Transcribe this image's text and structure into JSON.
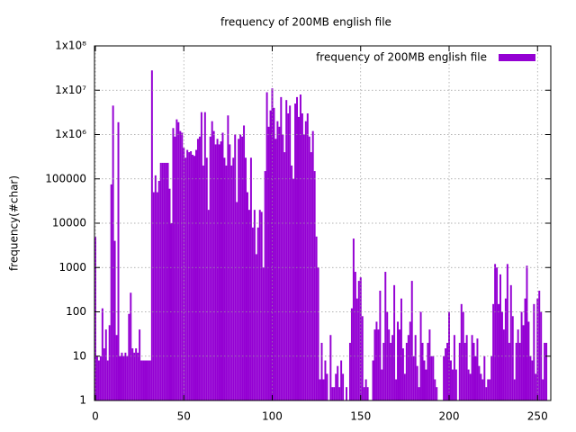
{
  "chart_data": {
    "type": "bar",
    "title": "frequency of 200MB english file",
    "y_label": "frequency(#char)",
    "x": [
      0,
      1,
      2,
      3,
      4,
      5,
      6,
      7,
      8,
      9,
      10,
      11,
      12,
      13,
      14,
      15,
      16,
      17,
      18,
      19,
      20,
      21,
      22,
      23,
      24,
      25,
      26,
      27,
      28,
      29,
      30,
      31,
      32,
      33,
      34,
      35,
      36,
      37,
      38,
      39,
      40,
      41,
      42,
      43,
      44,
      45,
      46,
      47,
      48,
      49,
      50,
      51,
      52,
      53,
      54,
      55,
      56,
      57,
      58,
      59,
      60,
      61,
      62,
      63,
      64,
      65,
      66,
      67,
      68,
      69,
      70,
      71,
      72,
      73,
      74,
      75,
      76,
      77,
      78,
      79,
      80,
      81,
      82,
      83,
      84,
      85,
      86,
      87,
      88,
      89,
      90,
      91,
      92,
      93,
      94,
      95,
      96,
      97,
      98,
      99,
      100,
      101,
      102,
      103,
      104,
      105,
      106,
      107,
      108,
      109,
      110,
      111,
      112,
      113,
      114,
      115,
      116,
      117,
      118,
      119,
      120,
      121,
      122,
      123,
      124,
      125,
      126,
      127,
      128,
      129,
      130,
      131,
      132,
      133,
      134,
      135,
      136,
      137,
      138,
      139,
      140,
      141,
      142,
      143,
      144,
      145,
      146,
      147,
      148,
      149,
      150,
      151,
      152,
      153,
      154,
      155,
      156,
      157,
      158,
      159,
      160,
      161,
      162,
      163,
      164,
      165,
      166,
      167,
      168,
      169,
      170,
      171,
      172,
      173,
      174,
      175,
      176,
      177,
      178,
      179,
      180,
      181,
      182,
      183,
      184,
      185,
      186,
      187,
      188,
      189,
      190,
      191,
      192,
      193,
      194,
      195,
      196,
      197,
      198,
      199,
      200,
      201,
      202,
      203,
      204,
      205,
      206,
      207,
      208,
      209,
      210,
      211,
      212,
      213,
      214,
      215,
      216,
      217,
      218,
      219,
      220,
      221,
      222,
      223,
      224,
      225,
      226,
      227,
      228,
      229,
      230,
      231,
      232,
      233,
      234,
      235,
      236,
      237,
      238,
      239,
      240,
      241,
      242,
      243,
      244,
      245,
      246,
      247,
      248,
      249,
      250,
      251,
      252,
      253,
      254,
      255
    ],
    "series": [
      {
        "name": "frequency of 200MB english file",
        "color": "#9400d3",
        "values": [
          5000,
          10,
          8,
          10,
          120,
          15,
          40,
          8,
          50,
          75000,
          4500000,
          4000,
          30,
          1900000,
          10,
          12,
          10,
          12,
          10,
          90,
          270,
          15,
          12,
          15,
          12,
          40,
          8,
          8,
          8,
          8,
          8,
          8,
          28000000,
          50000,
          120000,
          50000,
          90000,
          230000,
          230000,
          230000,
          230000,
          230000,
          60000,
          10000,
          1400000,
          900000,
          2200000,
          1900000,
          1200000,
          1100000,
          500000,
          300000,
          450000,
          400000,
          420000,
          350000,
          330000,
          450000,
          800000,
          900000,
          3200000,
          200000,
          3200000,
          300000,
          20000,
          900000,
          2000000,
          1200000,
          600000,
          800000,
          600000,
          700000,
          1100000,
          300000,
          200000,
          2700000,
          600000,
          200000,
          300000,
          1000000,
          30000,
          800000,
          1000000,
          900000,
          1600000,
          300000,
          50000,
          20000,
          300000,
          8000,
          20000,
          2000,
          8000,
          20000,
          18000,
          1000,
          150000,
          9000000,
          1500000,
          3500000,
          11000000,
          4000000,
          800000,
          2000000,
          1500000,
          7000000,
          1000000,
          400000,
          6000000,
          3000000,
          4500000,
          200000,
          100000,
          5000000,
          7000000,
          2500000,
          8000000,
          3000000,
          1000000,
          2000000,
          3000000,
          900000,
          400000,
          1200000,
          150000,
          5000,
          1000,
          3,
          20,
          3,
          8,
          4,
          1,
          30,
          2,
          2,
          4,
          6,
          2,
          8,
          4,
          1,
          2,
          1,
          20,
          120,
          4500,
          800,
          200,
          500,
          600,
          80,
          2,
          3,
          2,
          1,
          1,
          8,
          40,
          60,
          40,
          300,
          5,
          20,
          800,
          100,
          40,
          20,
          30,
          400,
          3,
          60,
          40,
          200,
          15,
          4,
          20,
          30,
          60,
          500,
          10,
          30,
          6,
          2,
          100,
          20,
          8,
          5,
          20,
          40,
          10,
          10,
          3,
          2,
          1,
          1,
          1,
          10,
          15,
          20,
          100,
          8,
          5,
          30,
          5,
          1,
          20,
          150,
          100,
          20,
          30,
          5,
          4,
          30,
          20,
          10,
          25,
          6,
          4,
          3,
          10,
          2,
          3,
          3,
          10,
          150,
          1200,
          1000,
          150,
          700,
          100,
          40,
          200,
          1200,
          20,
          400,
          80,
          3,
          20,
          40,
          20,
          100,
          50,
          200,
          1100,
          60,
          10,
          8,
          150,
          4,
          200,
          300,
          100,
          3,
          20,
          20
        ]
      }
    ],
    "xlim": [
      -0.5,
      257.5
    ],
    "ylim": [
      1,
      100000000
    ],
    "log_y": true,
    "xticks": [
      0,
      50,
      100,
      150,
      200,
      250
    ],
    "yticks": [
      1,
      10,
      100,
      1000,
      10000,
      100000,
      {
        "value": 1000000,
        "label": "1x10⁶"
      },
      {
        "value": 10000000,
        "label": "1x10⁷"
      },
      {
        "value": 100000000,
        "label": "1x10⁸"
      }
    ],
    "grid": true,
    "legend": "top-right"
  }
}
